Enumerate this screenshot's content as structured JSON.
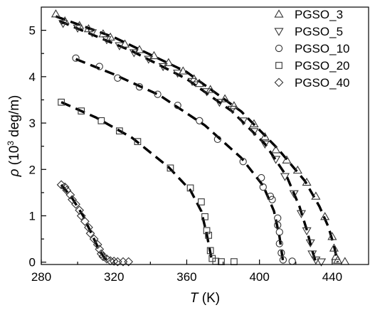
{
  "chart_data": {
    "type": "scatter",
    "title": "",
    "xlabel": {
      "italic": "T",
      "rest": " (K)"
    },
    "ylabel": {
      "italic": "ρ",
      "pre": " (10",
      "sup": "3",
      "post": " deg/m)"
    },
    "xlim": [
      280,
      460
    ],
    "ylim": [
      -0.05,
      5.5
    ],
    "xticks": [
      280,
      320,
      360,
      400,
      440
    ],
    "yticks": [
      0,
      1,
      2,
      3,
      4,
      5
    ],
    "grid": false,
    "legend_position": "top-right",
    "fit_lines": "dashed",
    "series": [
      {
        "name": "PGSO_3",
        "marker": "triangle-up",
        "points": [
          [
            288,
            5.35
          ],
          [
            293,
            5.2
          ],
          [
            301,
            5.1
          ],
          [
            306,
            5.03
          ],
          [
            314,
            4.92
          ],
          [
            318,
            4.85
          ],
          [
            326,
            4.7
          ],
          [
            334,
            4.58
          ],
          [
            342,
            4.45
          ],
          [
            350,
            4.3
          ],
          [
            358,
            4.12
          ],
          [
            364,
            3.95
          ],
          [
            367,
            3.85
          ],
          [
            373,
            3.72
          ],
          [
            381,
            3.52
          ],
          [
            386,
            3.37
          ],
          [
            397,
            2.98
          ],
          [
            403,
            2.7
          ],
          [
            409,
            2.42
          ],
          [
            415,
            2.2
          ],
          [
            421,
            1.98
          ],
          [
            426,
            1.72
          ],
          [
            431,
            1.42
          ],
          [
            436,
            0.98
          ],
          [
            440,
            0.55
          ],
          [
            441,
            0.3
          ],
          [
            442,
            0.12
          ],
          [
            443,
            0.04
          ],
          [
            447,
            0.01
          ]
        ],
        "fit": [
          [
            288,
            5.3
          ],
          [
            320,
            4.85
          ],
          [
            360,
            4.1
          ],
          [
            390,
            3.25
          ],
          [
            410,
            2.45
          ],
          [
            425,
            1.75
          ],
          [
            433,
            1.2
          ],
          [
            438,
            0.75
          ],
          [
            441,
            0.35
          ],
          [
            443,
            0
          ]
        ]
      },
      {
        "name": "PGSO_5",
        "marker": "triangle-down",
        "points": [
          [
            292,
            5.15
          ],
          [
            300,
            5.05
          ],
          [
            308,
            4.95
          ],
          [
            316,
            4.8
          ],
          [
            323,
            4.67
          ],
          [
            331,
            4.52
          ],
          [
            339,
            4.38
          ],
          [
            347,
            4.22
          ],
          [
            355,
            4.08
          ],
          [
            363,
            3.9
          ],
          [
            371,
            3.68
          ],
          [
            378,
            3.45
          ],
          [
            385,
            3.3
          ],
          [
            391,
            3.05
          ],
          [
            397,
            2.82
          ],
          [
            403,
            2.55
          ],
          [
            409,
            2.22
          ],
          [
            414,
            1.85
          ],
          [
            419,
            1.48
          ],
          [
            423,
            1.05
          ],
          [
            426,
            0.68
          ],
          [
            428,
            0.42
          ],
          [
            429,
            0.18
          ],
          [
            431,
            0.05
          ],
          [
            434,
            0.01
          ]
        ],
        "fit": [
          [
            290,
            5.2
          ],
          [
            330,
            4.55
          ],
          [
            360,
            3.95
          ],
          [
            385,
            3.25
          ],
          [
            403,
            2.55
          ],
          [
            415,
            1.85
          ],
          [
            422,
            1.2
          ],
          [
            426,
            0.7
          ],
          [
            429,
            0.25
          ],
          [
            431,
            0
          ]
        ]
      },
      {
        "name": "PGSO_10",
        "marker": "circle",
        "points": [
          [
            299,
            4.4
          ],
          [
            312,
            4.22
          ],
          [
            322,
            3.97
          ],
          [
            334,
            3.78
          ],
          [
            344,
            3.62
          ],
          [
            355,
            3.38
          ],
          [
            367,
            3.05
          ],
          [
            377,
            2.65
          ],
          [
            391,
            2.17
          ],
          [
            401,
            1.82
          ],
          [
            402,
            1.62
          ],
          [
            406,
            1.42
          ],
          [
            407,
            1.35
          ],
          [
            410,
            0.95
          ],
          [
            410,
            0.8
          ],
          [
            411,
            0.65
          ],
          [
            411,
            0.4
          ],
          [
            412,
            0.2
          ],
          [
            413,
            0.05
          ],
          [
            418,
            0.02
          ]
        ],
        "fit": [
          [
            299,
            4.38
          ],
          [
            320,
            4.05
          ],
          [
            345,
            3.6
          ],
          [
            370,
            2.95
          ],
          [
            390,
            2.25
          ],
          [
            402,
            1.65
          ],
          [
            408,
            1.1
          ],
          [
            411,
            0.55
          ],
          [
            413,
            0
          ]
        ]
      },
      {
        "name": "PGSO_20",
        "marker": "square",
        "points": [
          [
            291,
            3.45
          ],
          [
            302,
            3.26
          ],
          [
            313,
            3.05
          ],
          [
            323,
            2.83
          ],
          [
            333,
            2.6
          ],
          [
            351,
            2.03
          ],
          [
            362,
            1.6
          ],
          [
            368,
            1.3
          ],
          [
            370,
            0.98
          ],
          [
            371,
            0.68
          ],
          [
            372,
            0.58
          ],
          [
            373,
            0.25
          ],
          [
            374,
            0.08
          ],
          [
            376,
            0.02
          ],
          [
            379,
            0.01
          ],
          [
            386,
            0.01
          ]
        ],
        "fit": [
          [
            291,
            3.45
          ],
          [
            310,
            3.12
          ],
          [
            330,
            2.68
          ],
          [
            350,
            2.05
          ],
          [
            362,
            1.55
          ],
          [
            368,
            1.1
          ],
          [
            371,
            0.6
          ],
          [
            373,
            0.2
          ],
          [
            374,
            0
          ]
        ]
      },
      {
        "name": "PGSO_40",
        "marker": "diamond",
        "points": [
          [
            291,
            1.67
          ],
          [
            293,
            1.62
          ],
          [
            294,
            1.55
          ],
          [
            296,
            1.45
          ],
          [
            297,
            1.35
          ],
          [
            299,
            1.25
          ],
          [
            301,
            1.12
          ],
          [
            302,
            1.0
          ],
          [
            304,
            0.88
          ],
          [
            306,
            0.75
          ],
          [
            307,
            0.62
          ],
          [
            309,
            0.5
          ],
          [
            311,
            0.38
          ],
          [
            312,
            0.28
          ],
          [
            313,
            0.18
          ],
          [
            314,
            0.12
          ],
          [
            316,
            0.07
          ],
          [
            318,
            0.03
          ],
          [
            320,
            0.02
          ],
          [
            322,
            0.01
          ],
          [
            325,
            0.01
          ],
          [
            328,
            0.01
          ]
        ],
        "fit": [
          [
            291,
            1.67
          ],
          [
            297,
            1.38
          ],
          [
            303,
            1.0
          ],
          [
            308,
            0.58
          ],
          [
            312,
            0.25
          ],
          [
            315,
            0.08
          ],
          [
            318,
            0
          ]
        ]
      }
    ]
  }
}
